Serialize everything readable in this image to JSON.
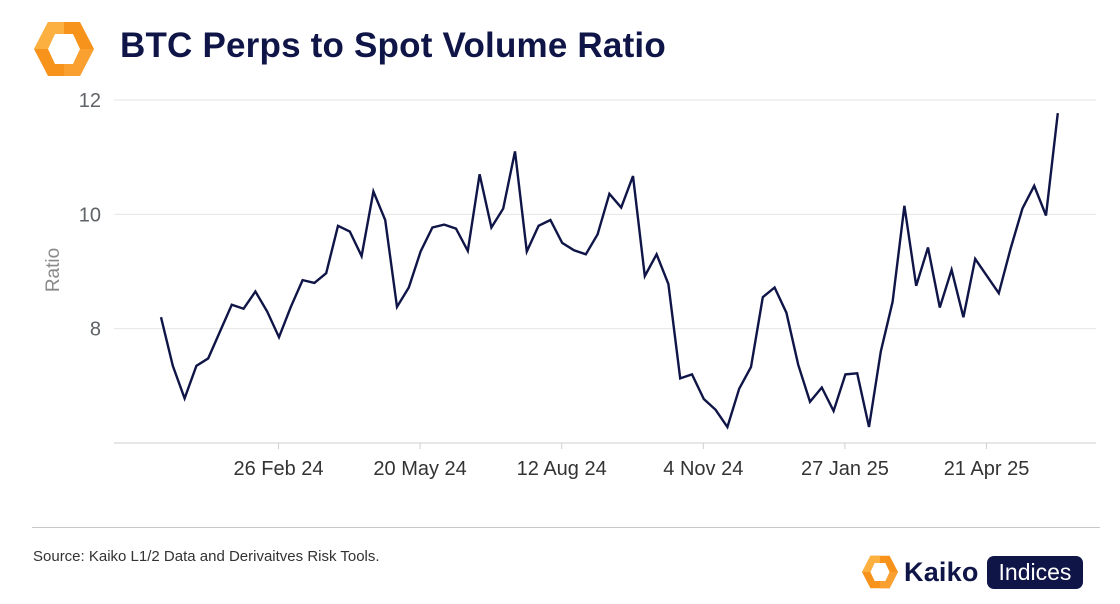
{
  "header": {
    "title": "BTC Perps to Spot Volume Ratio",
    "logo_icon": "kaiko-logo-icon"
  },
  "colors": {
    "title": "#0f1547",
    "line": "#0f1547",
    "logo_orange": "#f7931a",
    "logo_orange_light": "#fbb040",
    "grid": "#e6e6e6",
    "axis": "#cfcfcf"
  },
  "chart_data": {
    "type": "line",
    "title": "BTC Perps to Spot Volume Ratio",
    "xlabel": "",
    "ylabel": "Ratio",
    "ylim": [
      6,
      12
    ],
    "yticks": [
      8,
      10,
      12
    ],
    "grid": true,
    "legend": "none",
    "x_tick_labels": [
      "26 Feb 24",
      "20 May 24",
      "12 Aug 24",
      "4 Nov 24",
      "27 Jan 25",
      "21 Apr 25"
    ],
    "x_tick_week_index": [
      10,
      22,
      34,
      46,
      58,
      70
    ],
    "series": [
      {
        "name": "Perps/Spot Volume Ratio",
        "values": [
          8.2,
          7.35,
          6.78,
          7.35,
          7.48,
          7.95,
          8.42,
          8.35,
          8.65,
          8.3,
          7.85,
          8.38,
          8.85,
          8.8,
          8.97,
          9.8,
          9.7,
          9.27,
          10.4,
          9.9,
          8.38,
          8.72,
          9.35,
          9.77,
          9.82,
          9.75,
          9.36,
          10.7,
          9.77,
          10.1,
          11.1,
          9.35,
          9.8,
          9.9,
          9.5,
          9.37,
          9.3,
          9.65,
          10.36,
          10.12,
          10.67,
          8.92,
          9.3,
          8.78,
          7.13,
          7.2,
          6.77,
          6.58,
          6.28,
          6.95,
          7.33,
          8.55,
          8.72,
          8.28,
          7.37,
          6.72,
          6.97,
          6.56,
          7.2,
          7.22,
          6.28,
          7.6,
          8.47,
          10.15,
          8.75,
          9.42,
          8.37,
          9.03,
          8.2,
          9.22,
          8.92,
          8.62,
          9.4,
          10.1,
          10.5,
          9.98,
          11.77
        ]
      }
    ]
  },
  "footer": {
    "source": "Source: Kaiko L1/2 Data and Derivaitves Risk Tools.",
    "brand_word": "Kaiko",
    "brand_pill": "Indices"
  }
}
